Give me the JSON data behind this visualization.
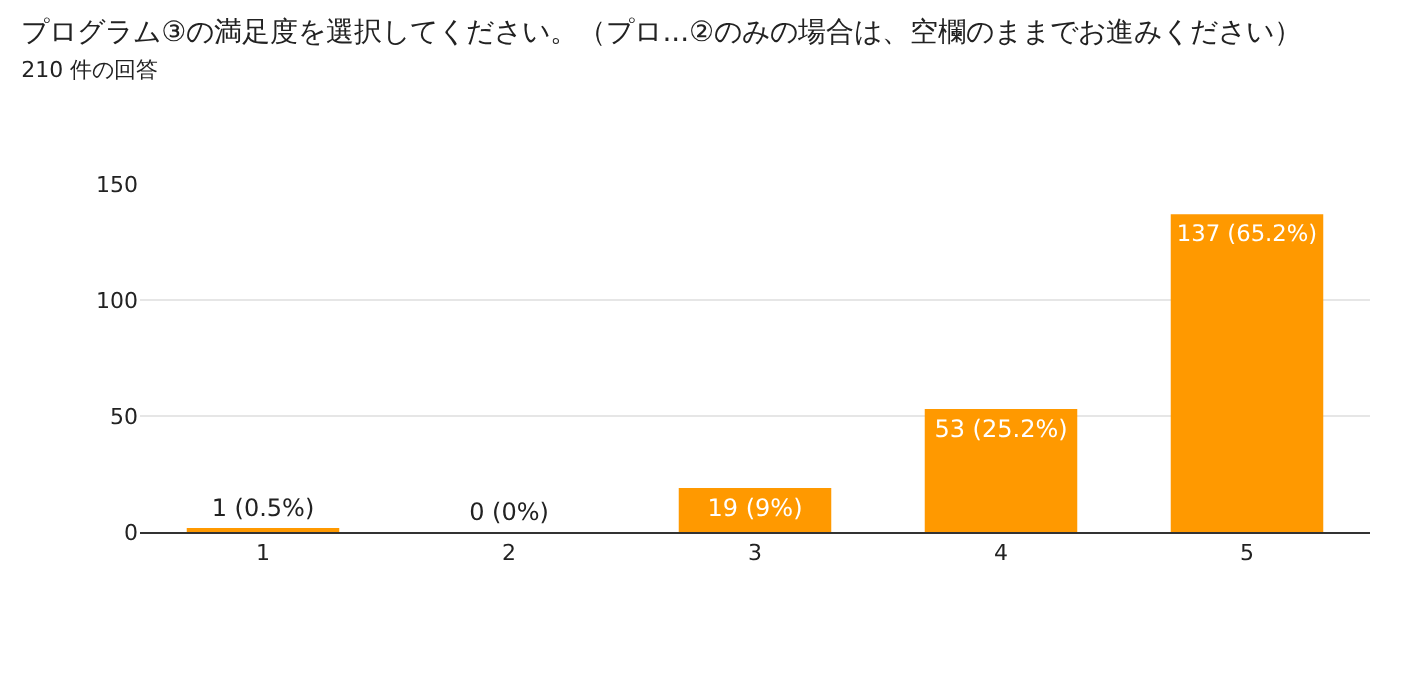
{
  "chart_data": {
    "type": "bar",
    "title": "プログラム③の満足度を選択してください。（プロ...②のみの場合は、空欄のままでお進みください）",
    "subtitle": "210 件の回答",
    "categories": [
      "1",
      "2",
      "3",
      "4",
      "5"
    ],
    "values": [
      1,
      0,
      19,
      53,
      137
    ],
    "value_labels": [
      "1 (0.5%)",
      "0 (0%)",
      "19 (9%)",
      "53 (25.2%)",
      "137 (65.2%)"
    ],
    "color": "#ff9900",
    "ylim": [
      0,
      150
    ],
    "yticks": [
      0,
      50,
      100,
      150
    ],
    "grid": "y",
    "legend": false
  }
}
